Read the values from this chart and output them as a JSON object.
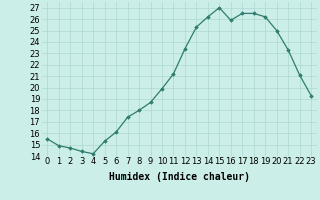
{
  "x": [
    0,
    1,
    2,
    3,
    4,
    5,
    6,
    7,
    8,
    9,
    10,
    11,
    12,
    13,
    14,
    15,
    16,
    17,
    18,
    19,
    20,
    21,
    22,
    23
  ],
  "y": [
    15.5,
    14.9,
    14.7,
    14.4,
    14.2,
    15.3,
    16.1,
    17.4,
    18.0,
    18.7,
    19.9,
    21.2,
    23.4,
    25.3,
    26.2,
    27.0,
    25.9,
    26.5,
    26.5,
    26.2,
    25.0,
    23.3,
    21.1,
    19.3
  ],
  "xlabel": "Humidex (Indice chaleur)",
  "ylim": [
    14,
    27.5
  ],
  "xlim": [
    -0.5,
    23.5
  ],
  "yticks": [
    14,
    15,
    16,
    17,
    18,
    19,
    20,
    21,
    22,
    23,
    24,
    25,
    26,
    27
  ],
  "xtick_labels": [
    "0",
    "1",
    "2",
    "3",
    "4",
    "5",
    "6",
    "7",
    "8",
    "9",
    "10",
    "11",
    "12",
    "13",
    "14",
    "15",
    "16",
    "17",
    "18",
    "19",
    "20",
    "21",
    "22",
    "23"
  ],
  "line_color": "#2e7d6e",
  "marker": "D",
  "marker_size": 1.8,
  "background_color": "#cceee8",
  "grid_color": "#aad8d0",
  "xlabel_fontsize": 7,
  "tick_fontsize": 6,
  "title": ""
}
